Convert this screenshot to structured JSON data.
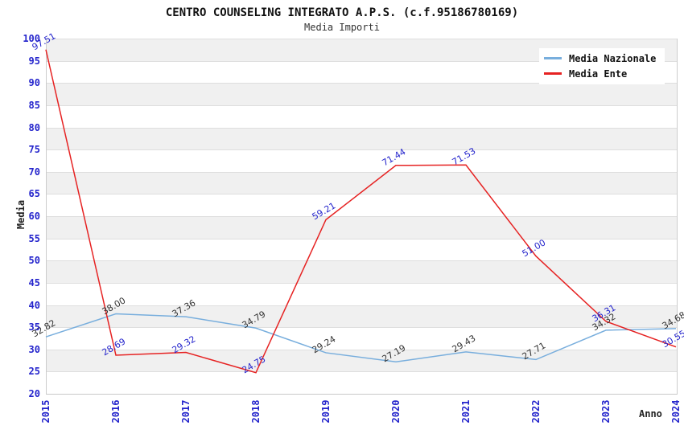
{
  "header": {
    "title": "CENTRO COUNSELING INTEGRATO A.P.S. (c.f.95186780169)",
    "subtitle": "Media Importi"
  },
  "chart_data": {
    "type": "line",
    "title": "CENTRO COUNSELING INTEGRATO A.P.S. (c.f.95186780169)",
    "subtitle": "Media Importi",
    "xlabel": "Anno",
    "ylabel": "Media",
    "x": [
      2015,
      2016,
      2017,
      2018,
      2019,
      2020,
      2021,
      2022,
      2023,
      2024
    ],
    "series": [
      {
        "name": "Media Nazionale",
        "color": "#78aedd",
        "label_color": "#333333",
        "values": [
          32.82,
          38.0,
          37.36,
          34.79,
          29.24,
          27.19,
          29.43,
          27.71,
          34.32,
          34.68
        ]
      },
      {
        "name": "Media Ente",
        "color": "#e62222",
        "label_color": "#2424cc",
        "values": [
          97.51,
          28.69,
          29.32,
          24.75,
          59.21,
          71.44,
          71.53,
          51.0,
          36.31,
          30.55
        ]
      }
    ],
    "ylim": [
      20,
      100
    ],
    "yticks": [
      20,
      25,
      30,
      35,
      40,
      45,
      50,
      55,
      60,
      65,
      70,
      75,
      80,
      85,
      90,
      95,
      100
    ],
    "grid": "horizontal-bands-5",
    "legend_position": "top-right"
  },
  "colors": {
    "tick_label": "#2424cc",
    "band_gray": "#f0f0f0",
    "band_white": "#ffffff",
    "gridline": "#dedede",
    "title_text": "#111111"
  }
}
